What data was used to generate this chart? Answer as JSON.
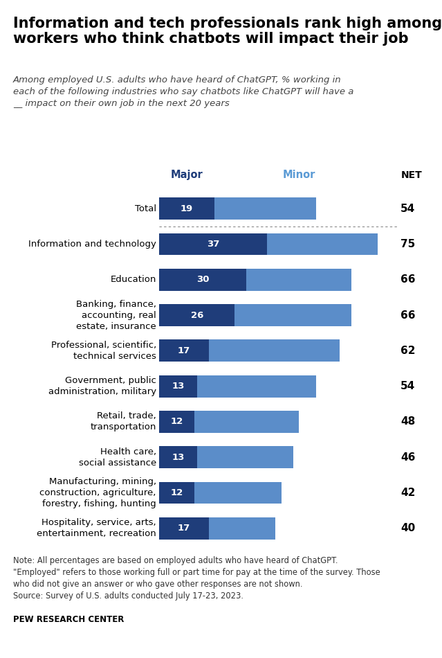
{
  "title": "Information and tech professionals rank high among\nworkers who think chatbots will impact their job",
  "subtitle": "Among employed U.S. adults who have heard of ChatGPT, % working in\neach of the following industries who say chatbots like ChatGPT will have a\n__ impact on their own job in the next 20 years",
  "categories": [
    "Total",
    "Information and technology",
    "Education",
    "Banking, finance,\naccounting, real\nestate, insurance",
    "Professional, scientific,\ntechnical services",
    "Government, public\nadministration, military",
    "Retail, trade,\ntransportation",
    "Health care,\nsocial assistance",
    "Manufacturing, mining,\nconstruction, agriculture,\nforestry, fishing, hunting",
    "Hospitality, service, arts,\nentertainment, recreation"
  ],
  "major_values": [
    19,
    37,
    30,
    26,
    17,
    13,
    12,
    13,
    12,
    17
  ],
  "net_values": [
    54,
    75,
    66,
    66,
    62,
    54,
    48,
    46,
    42,
    40
  ],
  "color_major": "#1F3D7A",
  "color_minor": "#5B8DC9",
  "color_major_header": "#1F3D7A",
  "color_minor_header": "#5B9BD5",
  "note_text": "Note: All percentages are based on employed adults who have heard of ChatGPT.\n\"Employed\" refers to those working full or part time for pay at the time of the survey. Those\nwho did not give an answer or who gave other responses are not shown.\nSource: Survey of U.S. adults conducted July 17-23, 2023.",
  "source_label": "PEW RESEARCH CENTER",
  "background_color": "#FFFFFF"
}
